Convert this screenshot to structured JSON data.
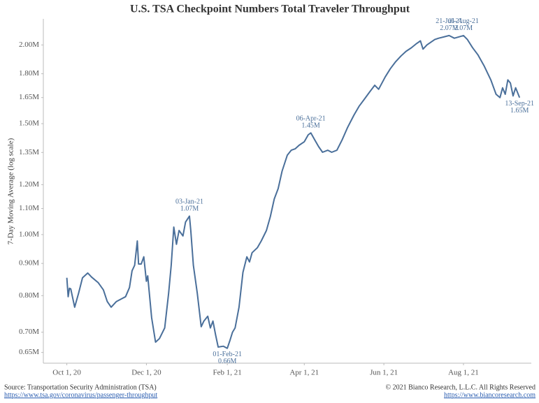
{
  "chart_data": {
    "type": "line",
    "title": "U.S. TSA Checkpoint Numbers Total Traveler Throughput",
    "y_label": "7-Day Moving Average (log scale)",
    "color": "#4a6f9a",
    "yscale": "log",
    "grid": false,
    "ylim": [
      0.625,
      2.2
    ],
    "yticks": [
      {
        "value": 0.65,
        "label": "0.65M"
      },
      {
        "value": 0.7,
        "label": "0.70M"
      },
      {
        "value": 0.8,
        "label": "0.80M"
      },
      {
        "value": 0.9,
        "label": "0.90M"
      },
      {
        "value": 1.0,
        "label": "1.00M"
      },
      {
        "value": 1.1,
        "label": "1.10M"
      },
      {
        "value": 1.2,
        "label": "1.20M"
      },
      {
        "value": 1.35,
        "label": "1.35M"
      },
      {
        "value": 1.5,
        "label": "1.50M"
      },
      {
        "value": 1.65,
        "label": "1.65M"
      },
      {
        "value": 1.8,
        "label": "1.80M"
      },
      {
        "value": 2.0,
        "label": "2.00M"
      }
    ],
    "xlim": [
      "2020-09-13",
      "2021-09-22"
    ],
    "xticks": [
      {
        "value": "2020-10-01",
        "label": "Oct 1, 20"
      },
      {
        "value": "2020-12-01",
        "label": "Dec 1, 20"
      },
      {
        "value": "2021-02-01",
        "label": "Feb 1, 21"
      },
      {
        "value": "2021-04-01",
        "label": "Apr 1, 21"
      },
      {
        "value": "2021-06-01",
        "label": "Jun 1, 21"
      },
      {
        "value": "2021-08-01",
        "label": "Aug 1, 21"
      }
    ],
    "x": [
      "2020-10-01",
      "2020-10-02",
      "2020-10-03",
      "2020-10-04",
      "2020-10-07",
      "2020-10-10",
      "2020-10-13",
      "2020-10-17",
      "2020-10-20",
      "2020-10-25",
      "2020-10-29",
      "2020-11-01",
      "2020-11-04",
      "2020-11-08",
      "2020-11-12",
      "2020-11-15",
      "2020-11-18",
      "2020-11-20",
      "2020-11-22",
      "2020-11-24",
      "2020-11-25",
      "2020-11-27",
      "2020-11-29",
      "2020-12-01",
      "2020-12-02",
      "2020-12-05",
      "2020-12-08",
      "2020-12-11",
      "2020-12-15",
      "2020-12-18",
      "2020-12-20",
      "2020-12-22",
      "2020-12-24",
      "2020-12-26",
      "2020-12-29",
      "2020-12-31",
      "2021-01-03",
      "2021-01-04",
      "2021-01-06",
      "2021-01-09",
      "2021-01-12",
      "2021-01-14",
      "2021-01-17",
      "2021-01-19",
      "2021-01-21",
      "2021-01-23",
      "2021-01-25",
      "2021-01-29",
      "2021-02-01",
      "2021-02-03",
      "2021-02-05",
      "2021-02-07",
      "2021-02-10",
      "2021-02-13",
      "2021-02-16",
      "2021-02-18",
      "2021-02-20",
      "2021-02-24",
      "2021-02-27",
      "2021-03-03",
      "2021-03-06",
      "2021-03-09",
      "2021-03-12",
      "2021-03-15",
      "2021-03-19",
      "2021-03-22",
      "2021-03-25",
      "2021-03-28",
      "2021-04-01",
      "2021-04-04",
      "2021-04-06",
      "2021-04-09",
      "2021-04-12",
      "2021-04-15",
      "2021-04-19",
      "2021-04-22",
      "2021-04-26",
      "2021-04-30",
      "2021-05-04",
      "2021-05-09",
      "2021-05-13",
      "2021-05-17",
      "2021-05-21",
      "2021-05-25",
      "2021-05-28",
      "2021-06-02",
      "2021-06-06",
      "2021-06-10",
      "2021-06-14",
      "2021-06-18",
      "2021-06-22",
      "2021-06-26",
      "2021-06-29",
      "2021-07-01",
      "2021-07-04",
      "2021-07-07",
      "2021-07-10",
      "2021-07-13",
      "2021-07-21",
      "2021-07-25",
      "2021-08-01",
      "2021-08-04",
      "2021-08-08",
      "2021-08-12",
      "2021-08-17",
      "2021-08-22",
      "2021-08-26",
      "2021-08-29",
      "2021-08-31",
      "2021-09-02",
      "2021-09-04",
      "2021-09-06",
      "2021-09-08",
      "2021-09-10",
      "2021-09-13"
    ],
    "values": [
      0.854,
      0.797,
      0.822,
      0.82,
      0.767,
      0.807,
      0.854,
      0.869,
      0.856,
      0.839,
      0.817,
      0.783,
      0.767,
      0.783,
      0.791,
      0.797,
      0.824,
      0.876,
      0.894,
      0.977,
      0.898,
      0.898,
      0.922,
      0.843,
      0.86,
      0.738,
      0.675,
      0.684,
      0.711,
      0.807,
      0.894,
      1.028,
      0.965,
      1.015,
      0.995,
      1.047,
      1.07,
      1.015,
      0.894,
      0.807,
      0.714,
      0.729,
      0.742,
      0.711,
      0.729,
      0.693,
      0.663,
      0.665,
      0.66,
      0.679,
      0.7,
      0.711,
      0.767,
      0.871,
      0.922,
      0.905,
      0.936,
      0.953,
      0.977,
      1.015,
      1.068,
      1.139,
      1.183,
      1.261,
      1.337,
      1.361,
      1.368,
      1.386,
      1.404,
      1.44,
      1.45,
      1.414,
      1.379,
      1.351,
      1.361,
      1.351,
      1.361,
      1.414,
      1.477,
      1.547,
      1.598,
      1.64,
      1.683,
      1.726,
      1.701,
      1.779,
      1.834,
      1.881,
      1.92,
      1.954,
      1.979,
      2.01,
      2.03,
      1.97,
      2.0,
      2.02,
      2.04,
      2.05,
      2.07,
      2.05,
      2.07,
      2.04,
      1.98,
      1.93,
      1.85,
      1.76,
      1.67,
      1.65,
      1.71,
      1.67,
      1.76,
      1.74,
      1.66,
      1.71,
      1.65
    ],
    "annotations": [
      {
        "x": "2021-01-03",
        "date_label": "03-Jan-21",
        "value": 1.07,
        "value_label": "1.07M",
        "position": "above"
      },
      {
        "x": "2021-02-01",
        "date_label": "01-Feb-21",
        "value": 0.66,
        "value_label": "0.66M",
        "position": "below"
      },
      {
        "x": "2021-04-06",
        "date_label": "06-Apr-21",
        "value": 1.45,
        "value_label": "1.45M",
        "position": "above"
      },
      {
        "x": "2021-07-21",
        "date_label": "21-Jul-21",
        "value": 2.07,
        "value_label": "2.07M",
        "position": "above"
      },
      {
        "x": "2021-08-01",
        "date_label": "01-Aug-21",
        "value": 2.07,
        "value_label": "2.07M",
        "position": "above"
      },
      {
        "x": "2021-09-13",
        "date_label": "13-Sep-21",
        "value": 1.65,
        "value_label": "1.65M",
        "position": "below"
      }
    ],
    "source": "Source: Transportation Security Administration (TSA)",
    "source_url": "https://www.tsa.gov/coronavirus/passenger-throughput",
    "copyright": "© 2021 Bianco Research, L.L.C. All Rights Reserved",
    "copyright_url": "https://www.biancoresearch.com"
  }
}
